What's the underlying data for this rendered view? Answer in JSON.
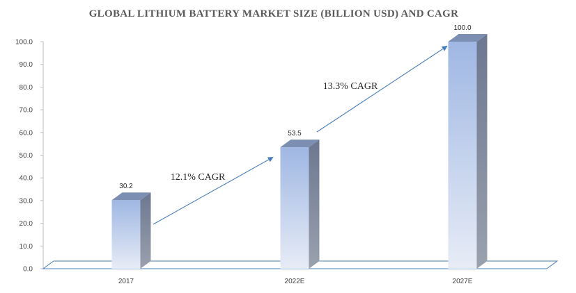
{
  "chart_data": {
    "type": "bar",
    "title": "GLOBAL LITHIUM BATTERY MARKET SIZE (BILLION USD) AND CAGR",
    "categories": [
      "2017",
      "2022E",
      "2027E"
    ],
    "values": [
      30.2,
      53.5,
      100.0
    ],
    "value_labels": [
      "30.2",
      "53.5",
      "100.0"
    ],
    "ylim": [
      0,
      100
    ],
    "yticks": [
      "0.0",
      "10.0",
      "20.0",
      "30.0",
      "40.0",
      "50.0",
      "60.0",
      "70.0",
      "80.0",
      "90.0",
      "100.0"
    ],
    "xlabel": "",
    "ylabel": "",
    "grid": false,
    "bar_style": "3d",
    "annotations": [
      {
        "text": "12.1% CAGR",
        "from": "2017",
        "to": "2022E"
      },
      {
        "text": "13.3% CAGR",
        "from": "2022E",
        "to": "2027E"
      }
    ],
    "colors": {
      "bar_top": "#9fb7e3",
      "bar_bottom": "#e7ecf6",
      "bar_side": "#7f8aa0",
      "bar_cap": "#7c8fb3",
      "arrow": "#4a7ebb",
      "axis": "#4a7ebb",
      "title": "#595959"
    }
  }
}
